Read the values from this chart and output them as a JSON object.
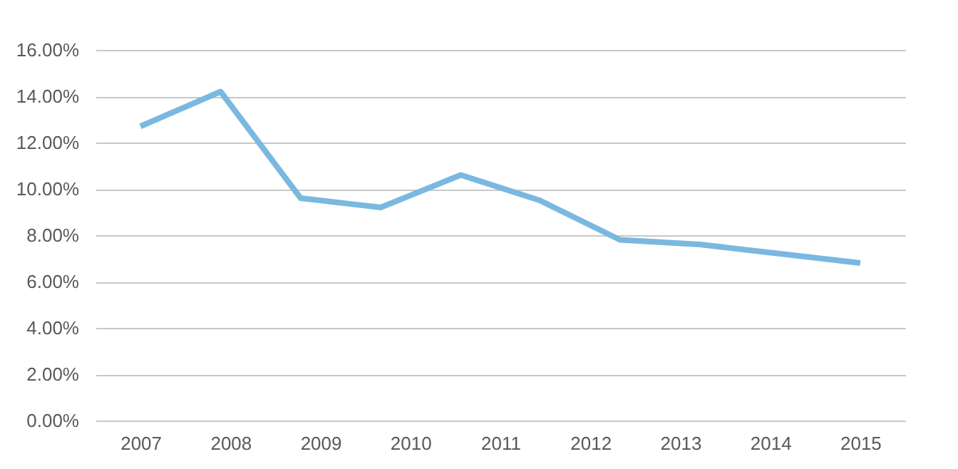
{
  "chart_data": {
    "type": "line",
    "x": [
      2007,
      2007.89,
      2008.78,
      2009.67,
      2010.56,
      2011.44,
      2012.33,
      2013.22,
      2014.11,
      2015
    ],
    "series": [
      {
        "color": "#7ab8e0",
        "values": [
          12.7,
          14.2,
          9.6,
          9.2,
          10.6,
          9.5,
          7.8,
          7.6,
          7.2,
          6.8
        ]
      }
    ],
    "xlim": [
      2006.5,
      2015.5
    ],
    "xticks": [
      2007,
      2008,
      2009,
      2010,
      2011,
      2012,
      2013,
      2014,
      2015
    ],
    "ylim": [
      0,
      16
    ],
    "yticks": [
      {
        "value": 0,
        "label": "0.00%"
      },
      {
        "value": 2,
        "label": "2.00%"
      },
      {
        "value": 4,
        "label": "4.00%"
      },
      {
        "value": 6,
        "label": "6.00%"
      },
      {
        "value": 8,
        "label": "8.00%"
      },
      {
        "value": 10,
        "label": "10.00%"
      },
      {
        "value": 12,
        "label": "12.00%"
      },
      {
        "value": 14,
        "label": "14.00%"
      },
      {
        "value": 16,
        "label": "16.00%"
      }
    ],
    "grid": "y",
    "marker": "none",
    "line_style": "solid"
  }
}
